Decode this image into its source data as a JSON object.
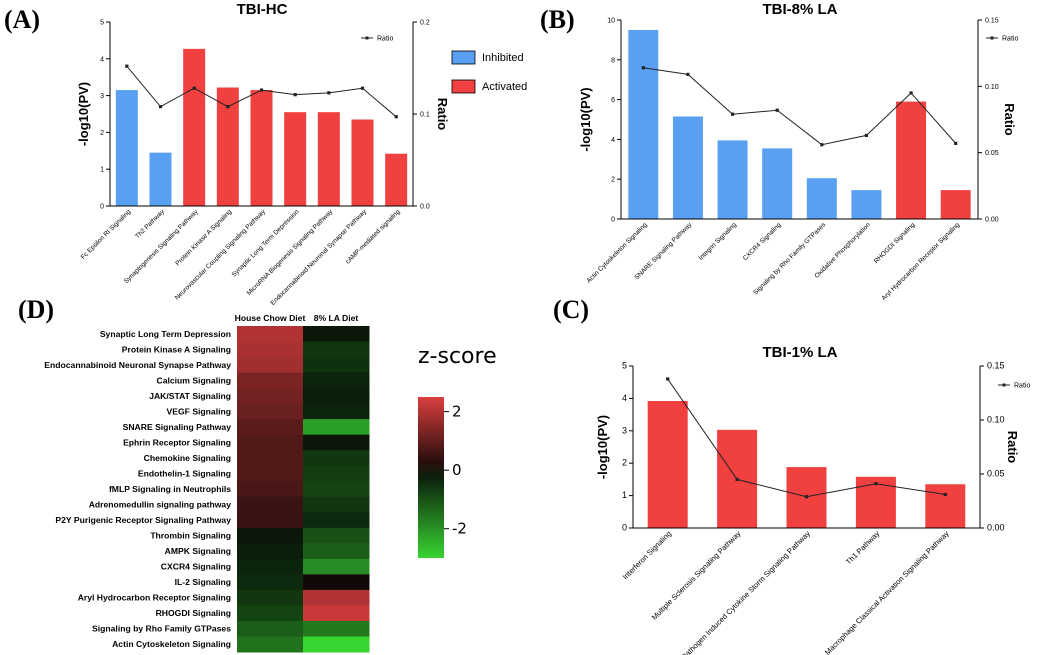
{
  "panel_labels": {
    "a": "(A)",
    "b": "(B)",
    "c": "(C)",
    "d": "(D)"
  },
  "colors": {
    "inhibited": "#5aa0f2",
    "activated": "#f14040",
    "line": "#222222"
  },
  "legend": {
    "ratio": "Ratio",
    "inhibited": "Inhibited",
    "activated": "Activated"
  },
  "chart_data": [
    {
      "id": "A",
      "type": "bar+line",
      "title": "TBI-HC",
      "ylabel": "-log10(PV)",
      "y2label": "Ratio",
      "ylim": [
        0,
        5
      ],
      "yticks": [
        0,
        1,
        2,
        3,
        4,
        5
      ],
      "y2lim": [
        0,
        0.2
      ],
      "y2ticks": [
        0.0,
        0.1,
        0.2
      ],
      "y2tick_labels": [
        "0.0",
        "0.1",
        "0.2"
      ],
      "categories": [
        "Fc Epsilon RI Signaling",
        "Th2 Pathway",
        "Synaptogenesis Signaling Pathway",
        "Protein Kinase A Signaling",
        "Neurovascular Coupling Signaling Pathway",
        "Synaptic Long Term Depression",
        "MicroRNA Biogenesis Signaling Pathway",
        "Endocannabinoid Neuronal Synapse Pathway",
        "cAMP-mediated signaling"
      ],
      "values": [
        3.15,
        1.45,
        4.27,
        3.22,
        3.15,
        2.55,
        2.55,
        2.35,
        1.42
      ],
      "status": [
        "inhibited",
        "inhibited",
        "activated",
        "activated",
        "activated",
        "activated",
        "activated",
        "activated",
        "activated"
      ],
      "ratio": [
        0.152,
        0.108,
        0.128,
        0.108,
        0.126,
        0.121,
        0.123,
        0.128,
        0.097
      ],
      "legend_position": "top-right"
    },
    {
      "id": "B",
      "type": "bar+line",
      "title": "TBI-8% LA",
      "ylabel": "-log10(PV)",
      "y2label": "Ratio",
      "ylim": [
        0,
        10
      ],
      "yticks": [
        0,
        2,
        4,
        6,
        8,
        10
      ],
      "y2lim": [
        0,
        0.15
      ],
      "y2ticks": [
        0,
        0.05,
        0.1,
        0.15
      ],
      "y2tick_labels": [
        "0.00",
        "0.05",
        "0.10",
        "0.15"
      ],
      "categories": [
        "Actin Cytoskeleton Signaling",
        "SNARE Signaling Pathway",
        "Integrin Signaling",
        "CXCR4 Signaling",
        "Signaling by Rho Family GTPases",
        "Oxidative Phosphorylation",
        "RHOGDI Signaling",
        "Aryl Hydrocarbon Receptor Signaling"
      ],
      "values": [
        9.5,
        5.15,
        3.95,
        3.55,
        2.05,
        1.45,
        5.9,
        1.45
      ],
      "status": [
        "inhibited",
        "inhibited",
        "inhibited",
        "inhibited",
        "inhibited",
        "inhibited",
        "activated",
        "activated"
      ],
      "ratio": [
        0.114,
        0.109,
        0.079,
        0.082,
        0.056,
        0.063,
        0.095,
        0.057
      ],
      "legend_position": "top-right"
    },
    {
      "id": "C",
      "type": "bar+line",
      "title": "TBI-1% LA",
      "ylabel": "-log10(PV)",
      "y2label": "Ratio",
      "ylim": [
        0,
        5
      ],
      "yticks": [
        0,
        1,
        2,
        3,
        4,
        5
      ],
      "y2lim": [
        0,
        0.15
      ],
      "y2ticks": [
        0,
        0.05,
        0.1,
        0.15
      ],
      "y2tick_labels": [
        "0.00",
        "0.05",
        "0.10",
        "0.15"
      ],
      "categories": [
        "Interferon Signaling",
        "Multiple Sclerosis Signaling Pathway",
        "Pathogen Induced Cytokine Storm Signaling Pathway",
        "Th1 Pathway",
        "Macrophage Classical Activation Signaling Pathway"
      ],
      "values": [
        3.92,
        3.03,
        1.88,
        1.58,
        1.35
      ],
      "status": [
        "activated",
        "activated",
        "activated",
        "activated",
        "activated"
      ],
      "ratio": [
        0.138,
        0.045,
        0.029,
        0.041,
        0.031
      ],
      "legend_position": "top-right"
    },
    {
      "id": "D",
      "type": "heatmap",
      "title": "z-score",
      "columns": [
        "House Chow Diet",
        "8% LA Diet"
      ],
      "rows": [
        "Synaptic Long Term Depression",
        "Protein Kinase A Signaling",
        "Endocannabinoid Neuronal Synapse Pathway",
        "Calcium Signaling",
        "JAK/STAT Signaling",
        "VEGF Signaling",
        "SNARE Signaling Pathway",
        "Ephrin Receptor Signaling",
        "Chemokine Signaling",
        "Endothelin-1 Signaling",
        "fMLP Signaling in Neutrophils",
        "Adrenomedullin signaling pathway",
        "P2Y Purigenic Receptor Signaling Pathway",
        "Thrombin Signaling",
        "AMPK Signaling",
        "CXCR4 Signaling",
        "IL-2 Signaling",
        "Aryl Hydrocarbon Receptor Signaling",
        "RHOGDI Signaling",
        "Signaling by Rho Family GTPases",
        "Actin Cytoskeleton Signaling"
      ],
      "values": [
        [
          2.0,
          -0.1
        ],
        [
          1.9,
          -0.6
        ],
        [
          1.8,
          -0.5
        ],
        [
          1.3,
          -0.3
        ],
        [
          1.2,
          -0.2
        ],
        [
          1.1,
          -0.3
        ],
        [
          0.9,
          -2.2
        ],
        [
          0.8,
          -0.1
        ],
        [
          0.8,
          -0.6
        ],
        [
          0.8,
          -0.7
        ],
        [
          0.7,
          -0.8
        ],
        [
          0.5,
          -0.6
        ],
        [
          0.5,
          -0.4
        ],
        [
          -0.1,
          -1.0
        ],
        [
          -0.2,
          -1.2
        ],
        [
          -0.3,
          -1.9
        ],
        [
          -0.4,
          0.0
        ],
        [
          -0.6,
          2.0
        ],
        [
          -0.8,
          2.3
        ],
        [
          -1.2,
          -1.6
        ],
        [
          -1.5,
          -3.0
        ]
      ],
      "colorbar": {
        "min": -3,
        "max": 2.5,
        "ticks": [
          2,
          0,
          -2
        ],
        "tick_labels": [
          "2",
          "0",
          "-2"
        ]
      }
    }
  ]
}
